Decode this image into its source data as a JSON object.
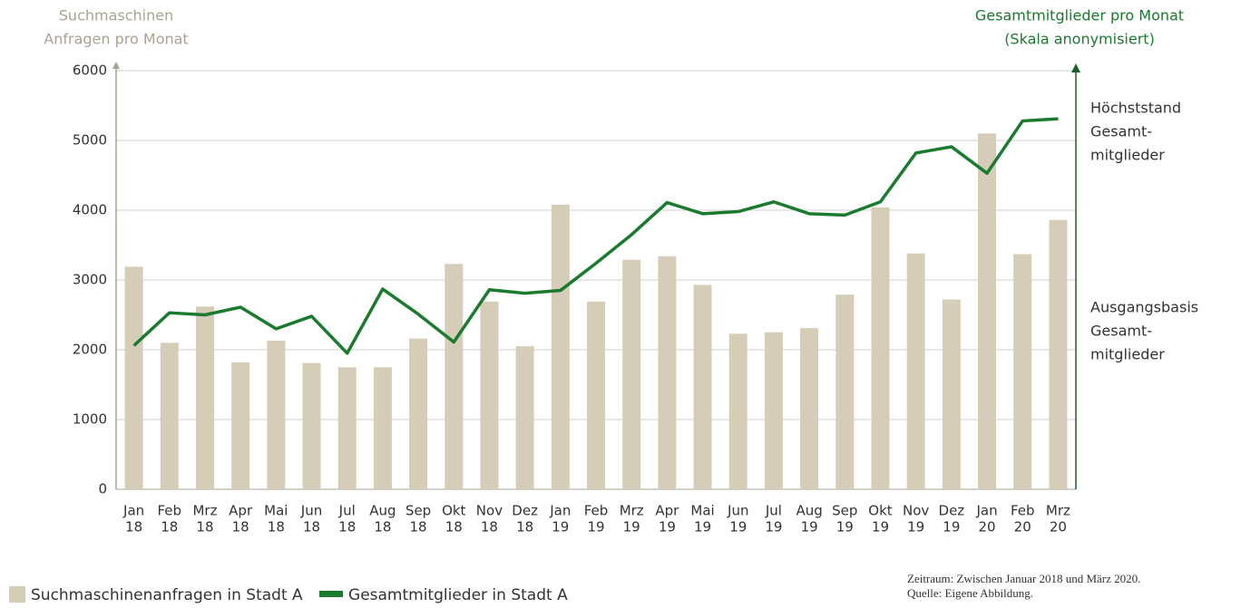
{
  "chart_data": {
    "type": "bar_line",
    "y_axis_title": [
      "Suchmaschinen",
      "Anfragen pro Monat"
    ],
    "y2_axis_title": [
      "Gesamtmitglieder pro Monat",
      "(Skala anonymisiert)"
    ],
    "categories": [
      [
        "Jan",
        "18"
      ],
      [
        "Feb",
        "18"
      ],
      [
        "Mrz",
        "18"
      ],
      [
        "Apr",
        "18"
      ],
      [
        "Mai",
        "18"
      ],
      [
        "Jun",
        "18"
      ],
      [
        "Jul",
        "18"
      ],
      [
        "Aug",
        "18"
      ],
      [
        "Sep",
        "18"
      ],
      [
        "Okt",
        "18"
      ],
      [
        "Nov",
        "18"
      ],
      [
        "Dez",
        "18"
      ],
      [
        "Jan",
        "19"
      ],
      [
        "Feb",
        "19"
      ],
      [
        "Mrz",
        "19"
      ],
      [
        "Apr",
        "19"
      ],
      [
        "Mai",
        "19"
      ],
      [
        "Jun",
        "19"
      ],
      [
        "Jul",
        "19"
      ],
      [
        "Aug",
        "19"
      ],
      [
        "Sep",
        "19"
      ],
      [
        "Okt",
        "19"
      ],
      [
        "Nov",
        "19"
      ],
      [
        "Dez",
        "19"
      ],
      [
        "Jan",
        "20"
      ],
      [
        "Feb",
        "20"
      ],
      [
        "Mrz",
        "20"
      ]
    ],
    "series": [
      {
        "name": "Suchmaschinenanfragen in Stadt A",
        "type": "bar",
        "color": "#d6cdb8",
        "values": [
          3190,
          2100,
          2620,
          1820,
          2130,
          1810,
          1750,
          1750,
          2160,
          3230,
          2690,
          2050,
          4080,
          2690,
          3290,
          3340,
          2930,
          2230,
          2250,
          2310,
          2790,
          4040,
          3380,
          2720,
          5100,
          3370,
          3860
        ]
      },
      {
        "name": "Gesamtmitglieder in Stadt A",
        "type": "line",
        "axis": "y2",
        "color": "#1a7a2e",
        "values": [
          2060,
          2530,
          2500,
          2610,
          2300,
          2480,
          1950,
          2870,
          2510,
          2110,
          2860,
          2810,
          2850,
          3240,
          3650,
          4110,
          3950,
          3980,
          4120,
          3950,
          3930,
          4120,
          4820,
          4910,
          4530,
          5280,
          5310
        ]
      }
    ],
    "ylim": [
      0,
      6000
    ],
    "yticks": [
      0,
      1000,
      2000,
      3000,
      4000,
      5000,
      6000
    ],
    "y2lim": [
      0,
      6000
    ],
    "grid": true,
    "annotations": [
      [
        "Höchststand",
        "Gesamt-",
        "mitglieder"
      ],
      [
        "Ausgangsbasis",
        "Gesamt-",
        "mitglieder"
      ]
    ],
    "notes": [
      "Zeitraum: Zwischen Januar 2018 und März 2020.",
      "Quelle: Eigene Abbildung."
    ]
  }
}
